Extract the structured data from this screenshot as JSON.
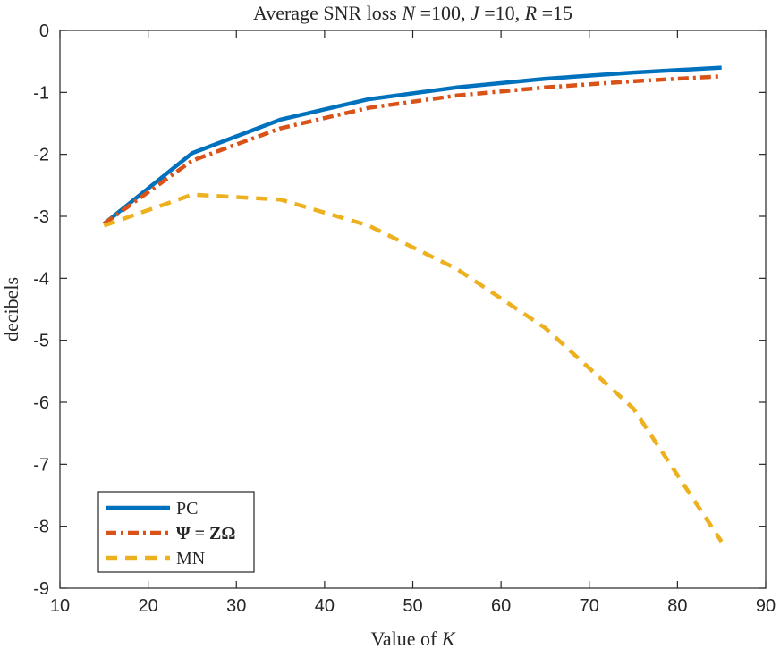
{
  "chart_data": {
    "type": "line",
    "title": "Average SNR loss N =100, J =10, R =15",
    "title_parts": {
      "prefix": "Average SNR loss ",
      "n_var": "N",
      "n_val": " =100, ",
      "j_var": "J",
      "j_val": " =10, ",
      "r_var": "R",
      "r_val": " =15"
    },
    "xlabel": "Value of K",
    "xlabel_parts": {
      "prefix": "Value of ",
      "var": "K"
    },
    "ylabel": "decibels",
    "xlim": [
      10,
      90
    ],
    "ylim": [
      -9,
      0
    ],
    "xticks": [
      10,
      20,
      30,
      40,
      50,
      60,
      70,
      80,
      90
    ],
    "yticks": [
      0,
      -1,
      -2,
      -3,
      -4,
      -5,
      -6,
      -7,
      -8,
      -9
    ],
    "x": [
      15,
      25,
      35,
      45,
      55,
      65,
      75,
      85
    ],
    "series": [
      {
        "name": "PC",
        "color": "#0072BD",
        "style": "solid",
        "values": [
          -3.12,
          -1.98,
          -1.44,
          -1.11,
          -0.92,
          -0.78,
          -0.68,
          -0.6
        ]
      },
      {
        "name": "Ψ = ZΩ",
        "color": "#D95319",
        "style": "dashdot",
        "values": [
          -3.12,
          -2.1,
          -1.58,
          -1.25,
          -1.05,
          -0.92,
          -0.82,
          -0.74
        ]
      },
      {
        "name": "MN",
        "color": "#EDB120",
        "style": "dashed",
        "values": [
          -3.15,
          -2.65,
          -2.73,
          -3.15,
          -3.85,
          -4.8,
          -6.1,
          -8.25
        ]
      }
    ],
    "legend": {
      "location": "bottom-left",
      "entries": [
        "PC",
        "Ψ = ZΩ",
        "MN"
      ]
    }
  }
}
